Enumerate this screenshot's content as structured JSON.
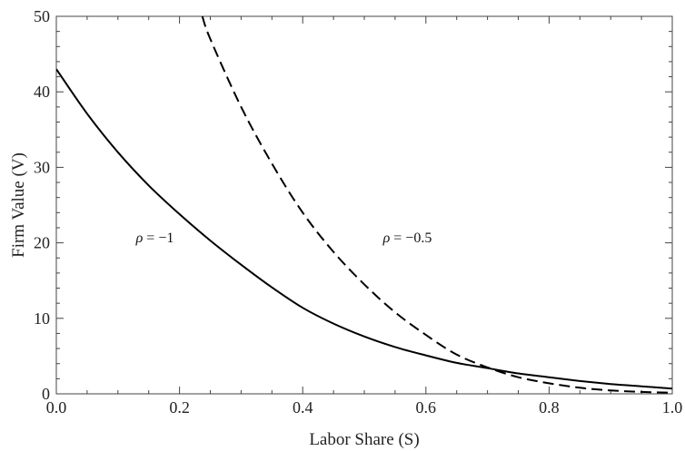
{
  "chart_data": {
    "type": "line",
    "xlabel": "Labor Share (S)",
    "ylabel": "Firm Value (V)",
    "xlim": [
      0.0,
      1.0
    ],
    "ylim": [
      0,
      50
    ],
    "x_ticks": [
      "0.0",
      "0.2",
      "0.4",
      "0.6",
      "0.8",
      "1.0"
    ],
    "y_ticks": [
      "0",
      "10",
      "20",
      "30",
      "40",
      "50"
    ],
    "grid": false,
    "legend": "none",
    "series": [
      {
        "label": "ρ = −1",
        "style": "solid",
        "color": "#000000",
        "x": [
          0.0,
          0.05,
          0.1,
          0.15,
          0.2,
          0.25,
          0.3,
          0.35,
          0.4,
          0.45,
          0.5,
          0.55,
          0.6,
          0.65,
          0.7,
          0.75,
          0.8,
          0.85,
          0.9,
          0.95,
          1.0
        ],
        "y": [
          43.0,
          37.1,
          32.0,
          27.6,
          23.8,
          20.3,
          17.1,
          14.1,
          11.4,
          9.3,
          7.6,
          6.2,
          5.1,
          4.1,
          3.4,
          2.7,
          2.2,
          1.7,
          1.3,
          1.0,
          0.7
        ]
      },
      {
        "label": "ρ = −0.5",
        "style": "dashed",
        "color": "#000000",
        "x": [
          0.237,
          0.25,
          0.3,
          0.35,
          0.4,
          0.45,
          0.5,
          0.55,
          0.6,
          0.65,
          0.7,
          0.75,
          0.8,
          0.85,
          0.9,
          0.95,
          1.0
        ],
        "y": [
          50.0,
          47.0,
          38.0,
          30.5,
          24.0,
          18.8,
          14.5,
          10.8,
          7.8,
          5.2,
          3.5,
          2.2,
          1.4,
          0.8,
          0.45,
          0.25,
          0.15
        ]
      }
    ],
    "annotations": [
      {
        "text": "ρ = −1",
        "x": 0.16,
        "y": 20.1
      },
      {
        "text": "ρ = −0.5",
        "x": 0.57,
        "y": 20.1
      }
    ]
  }
}
